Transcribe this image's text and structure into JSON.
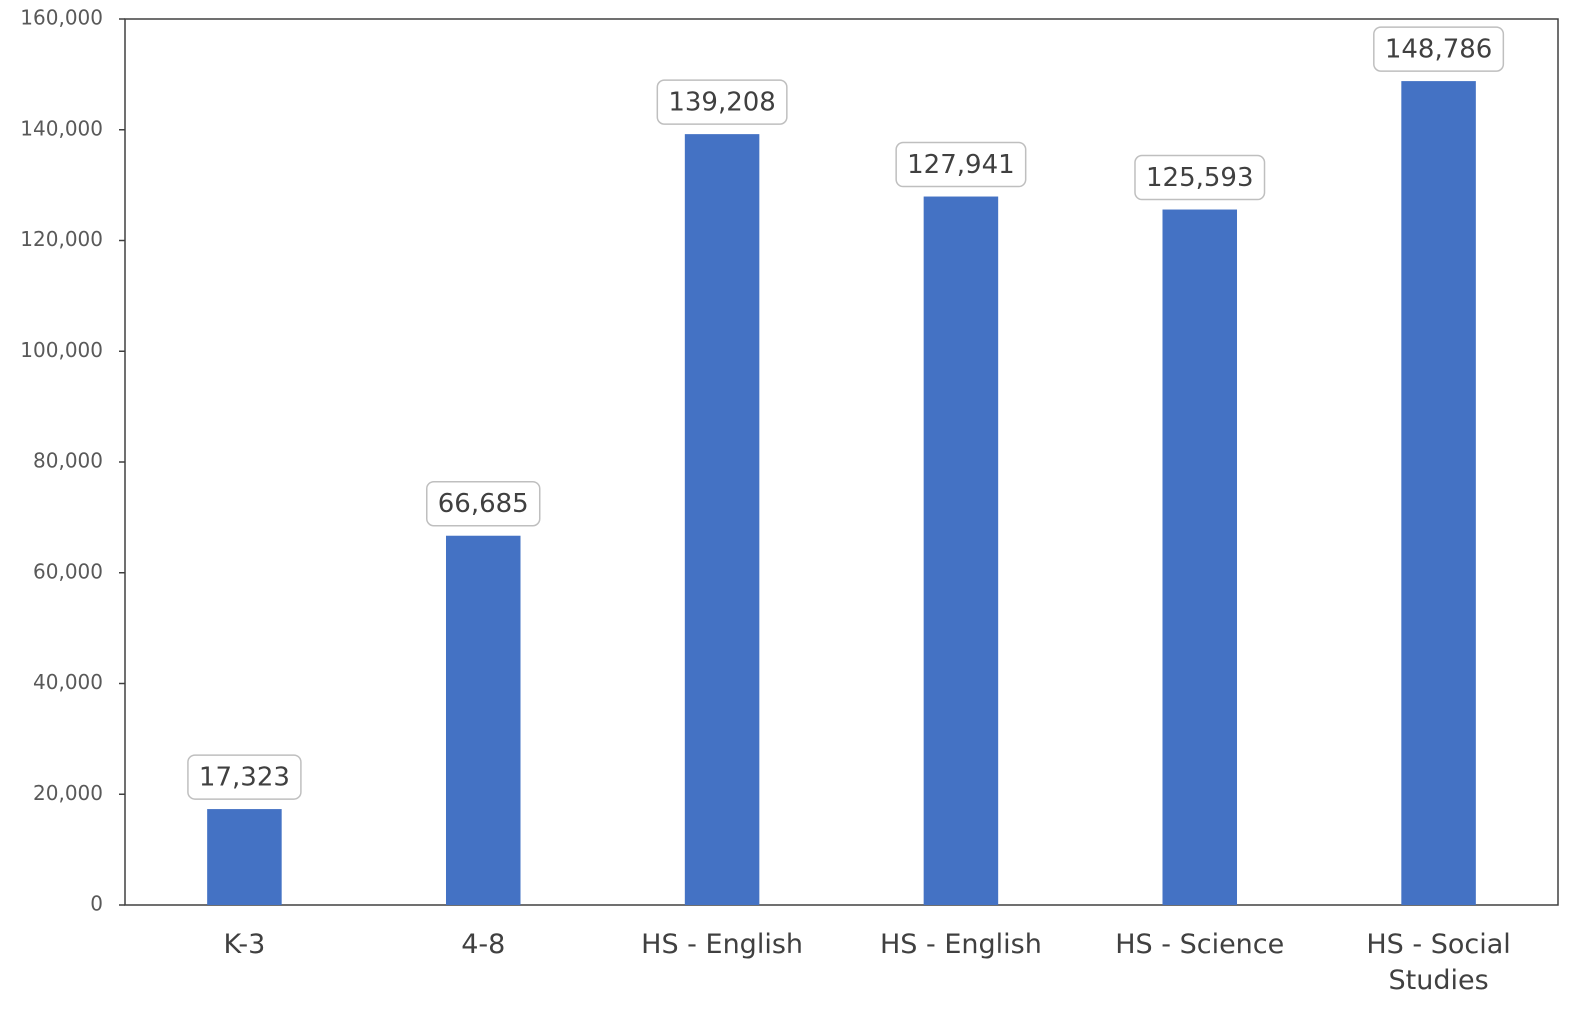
{
  "chart_data": {
    "type": "bar",
    "categories": [
      "K-3",
      "4-8",
      "HS - English",
      "HS - English",
      "HS - Science",
      "HS - Social Studies"
    ],
    "values": [
      17323,
      66685,
      139208,
      127941,
      125593,
      148786
    ],
    "value_labels": [
      "17,323",
      "66,685",
      "139,208",
      "127,941",
      "125,593",
      "148,786"
    ],
    "color": "#4472c4",
    "ylim": [
      0,
      160000
    ],
    "yticks": [
      0,
      {
        "value": 20000,
        "label": "20,000"
      },
      {
        "value": 40000,
        "label": "40,000"
      },
      {
        "value": 60000,
        "label": "60,000"
      },
      {
        "value": 80000,
        "label": "80,000"
      },
      {
        "value": 100000,
        "label": "100,000"
      },
      {
        "value": 120000,
        "label": "120,000"
      },
      {
        "value": 140000,
        "label": "140,000"
      },
      {
        "value": 160000,
        "label": "160,000"
      }
    ],
    "grid": false
  }
}
